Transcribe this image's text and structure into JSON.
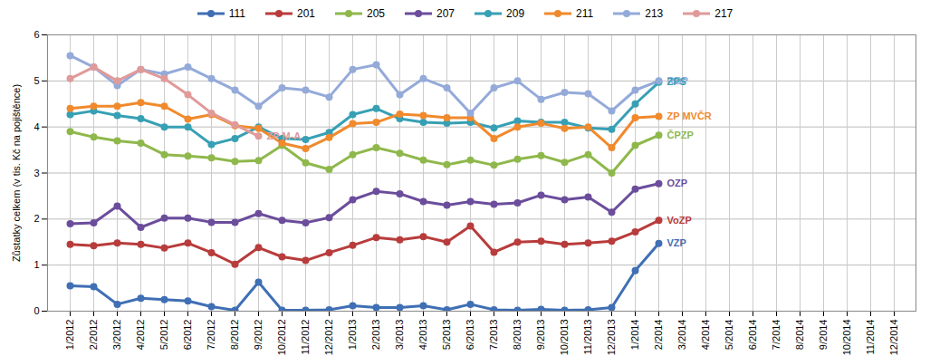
{
  "chart_data": {
    "type": "line",
    "y_label": "Zůstatky celkem (v tis. Kč na pojištěnce)",
    "categories": [
      "1/2012",
      "2/2012",
      "3/2012",
      "4/2012",
      "5/2012",
      "6/2012",
      "7/2012",
      "8/2012",
      "9/2012",
      "10/2012",
      "11/2012",
      "12/2012",
      "1/2013",
      "2/2013",
      "3/2013",
      "4/2013",
      "5/2013",
      "6/2013",
      "7/2013",
      "8/2013",
      "9/2013",
      "10/2013",
      "11/2013",
      "12/2013",
      "1/2014",
      "2/2014",
      "3/2014",
      "4/2014",
      "5/2014",
      "6/2014",
      "7/2014",
      "8/2014",
      "9/2014",
      "10/2014",
      "11/2014",
      "12/2014"
    ],
    "ylim": [
      0,
      6
    ],
    "yticks": [
      0,
      1,
      2,
      3,
      4,
      5,
      6
    ],
    "grid": true,
    "legend": "top",
    "marker": "circle",
    "series": [
      {
        "name": "111",
        "color": "#3f6fb4",
        "values": [
          0.55,
          0.53,
          0.15,
          0.28,
          0.25,
          0.22,
          0.1,
          0.02,
          0.63,
          0.02,
          0.02,
          0.03,
          0.12,
          0.08,
          0.08,
          0.12,
          0.03,
          0.15,
          0.03,
          0.02,
          0.04,
          0.02,
          0.03,
          0.08,
          0.88,
          1.47,
          null,
          null,
          null,
          null,
          null,
          null,
          null,
          null,
          null,
          null
        ]
      },
      {
        "name": "201",
        "color": "#b83c3c",
        "values": [
          1.45,
          1.42,
          1.48,
          1.45,
          1.37,
          1.48,
          1.27,
          1.02,
          1.38,
          1.18,
          1.1,
          1.27,
          1.43,
          1.6,
          1.55,
          1.62,
          1.5,
          1.85,
          1.28,
          1.5,
          1.52,
          1.45,
          1.48,
          1.52,
          1.72,
          1.97,
          null,
          null,
          null,
          null,
          null,
          null,
          null,
          null,
          null,
          null
        ]
      },
      {
        "name": "205",
        "color": "#8fb84c",
        "values": [
          3.9,
          3.78,
          3.7,
          3.65,
          3.4,
          3.37,
          3.33,
          3.25,
          3.27,
          3.6,
          3.22,
          3.08,
          3.4,
          3.55,
          3.43,
          3.28,
          3.18,
          3.28,
          3.17,
          3.3,
          3.38,
          3.23,
          3.4,
          3.0,
          3.6,
          3.82,
          null,
          null,
          null,
          null,
          null,
          null,
          null,
          null,
          null,
          null
        ]
      },
      {
        "name": "207",
        "color": "#6b4d9c",
        "values": [
          1.9,
          1.92,
          2.28,
          1.82,
          2.02,
          2.02,
          1.93,
          1.93,
          2.12,
          1.97,
          1.92,
          2.03,
          2.42,
          2.6,
          2.55,
          2.38,
          2.3,
          2.38,
          2.32,
          2.35,
          2.52,
          2.42,
          2.48,
          2.15,
          2.65,
          2.77,
          null,
          null,
          null,
          null,
          null,
          null,
          null,
          null,
          null,
          null
        ]
      },
      {
        "name": "209",
        "color": "#37a0b4",
        "values": [
          4.27,
          4.35,
          4.25,
          4.18,
          4.0,
          4.0,
          3.62,
          3.75,
          4.0,
          3.75,
          3.73,
          3.88,
          4.27,
          4.4,
          4.18,
          4.1,
          4.08,
          4.1,
          3.98,
          4.13,
          4.1,
          4.1,
          3.98,
          3.95,
          4.5,
          4.97,
          null,
          null,
          null,
          null,
          null,
          null,
          null,
          null,
          null,
          null
        ]
      },
      {
        "name": "211",
        "color": "#f08a2d",
        "values": [
          4.4,
          4.45,
          4.45,
          4.53,
          4.45,
          4.17,
          4.27,
          4.03,
          3.97,
          3.65,
          3.53,
          3.77,
          4.07,
          4.1,
          4.28,
          4.25,
          4.2,
          4.2,
          3.75,
          4.0,
          4.08,
          3.97,
          4.0,
          3.55,
          4.2,
          4.23,
          null,
          null,
          null,
          null,
          null,
          null,
          null,
          null,
          null,
          null
        ]
      },
      {
        "name": "213",
        "color": "#94aad9",
        "values": [
          5.55,
          5.3,
          4.9,
          5.25,
          5.15,
          5.3,
          5.05,
          4.8,
          4.45,
          4.85,
          4.8,
          4.65,
          5.25,
          5.35,
          4.7,
          5.05,
          4.85,
          4.3,
          4.85,
          5.0,
          4.6,
          4.75,
          4.72,
          4.35,
          4.8,
          5.0,
          null,
          null,
          null,
          null,
          null,
          null,
          null,
          null,
          null,
          null
        ]
      },
      {
        "name": "217",
        "color": "#e09a9a",
        "values": [
          5.05,
          5.3,
          5.0,
          5.25,
          5.05,
          4.7,
          4.3,
          4.05,
          3.8,
          null,
          null,
          null,
          null,
          null,
          null,
          null,
          null,
          null,
          null,
          null,
          null,
          null,
          null,
          null,
          null,
          null,
          null,
          null,
          null,
          null,
          null,
          null,
          null,
          null,
          null,
          null
        ]
      }
    ],
    "annotations": [
      {
        "series": "213",
        "text": "RBP"
      },
      {
        "series": "209",
        "text": "ZPS"
      },
      {
        "series": "211",
        "text": "ZP MVČR"
      },
      {
        "series": "205",
        "text": "ČPZP"
      },
      {
        "series": "207",
        "text": "OZP"
      },
      {
        "series": "201",
        "text": "VoZP"
      },
      {
        "series": "111",
        "text": "VZP"
      },
      {
        "series": "217",
        "text": "ZP M-A"
      }
    ]
  }
}
